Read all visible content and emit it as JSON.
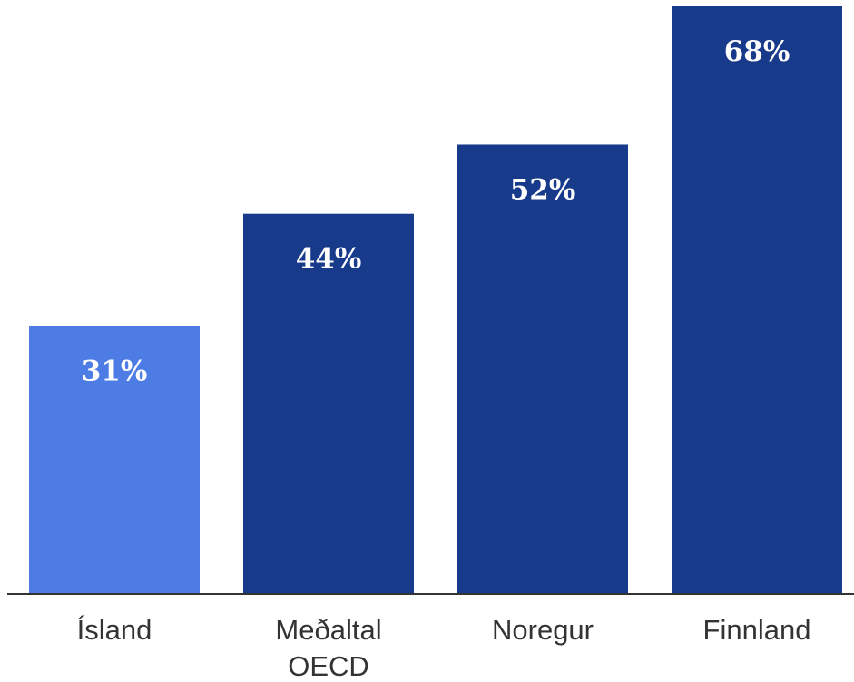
{
  "chart_data": {
    "type": "bar",
    "categories": [
      [
        "Ísland"
      ],
      [
        "Meðaltal",
        "OECD"
      ],
      [
        "Noregur"
      ],
      [
        "Finnland"
      ]
    ],
    "values": [
      31,
      44,
      52,
      68
    ],
    "value_labels": [
      "31%",
      "44%",
      "52%",
      "68%"
    ],
    "unit": "%",
    "ylim": [
      0,
      68
    ],
    "grid": false,
    "legend": "none",
    "colors": {
      "highlight": "#4D7CE5",
      "default": "#183A8B",
      "axis": "#333333"
    },
    "highlight_index": 0
  }
}
